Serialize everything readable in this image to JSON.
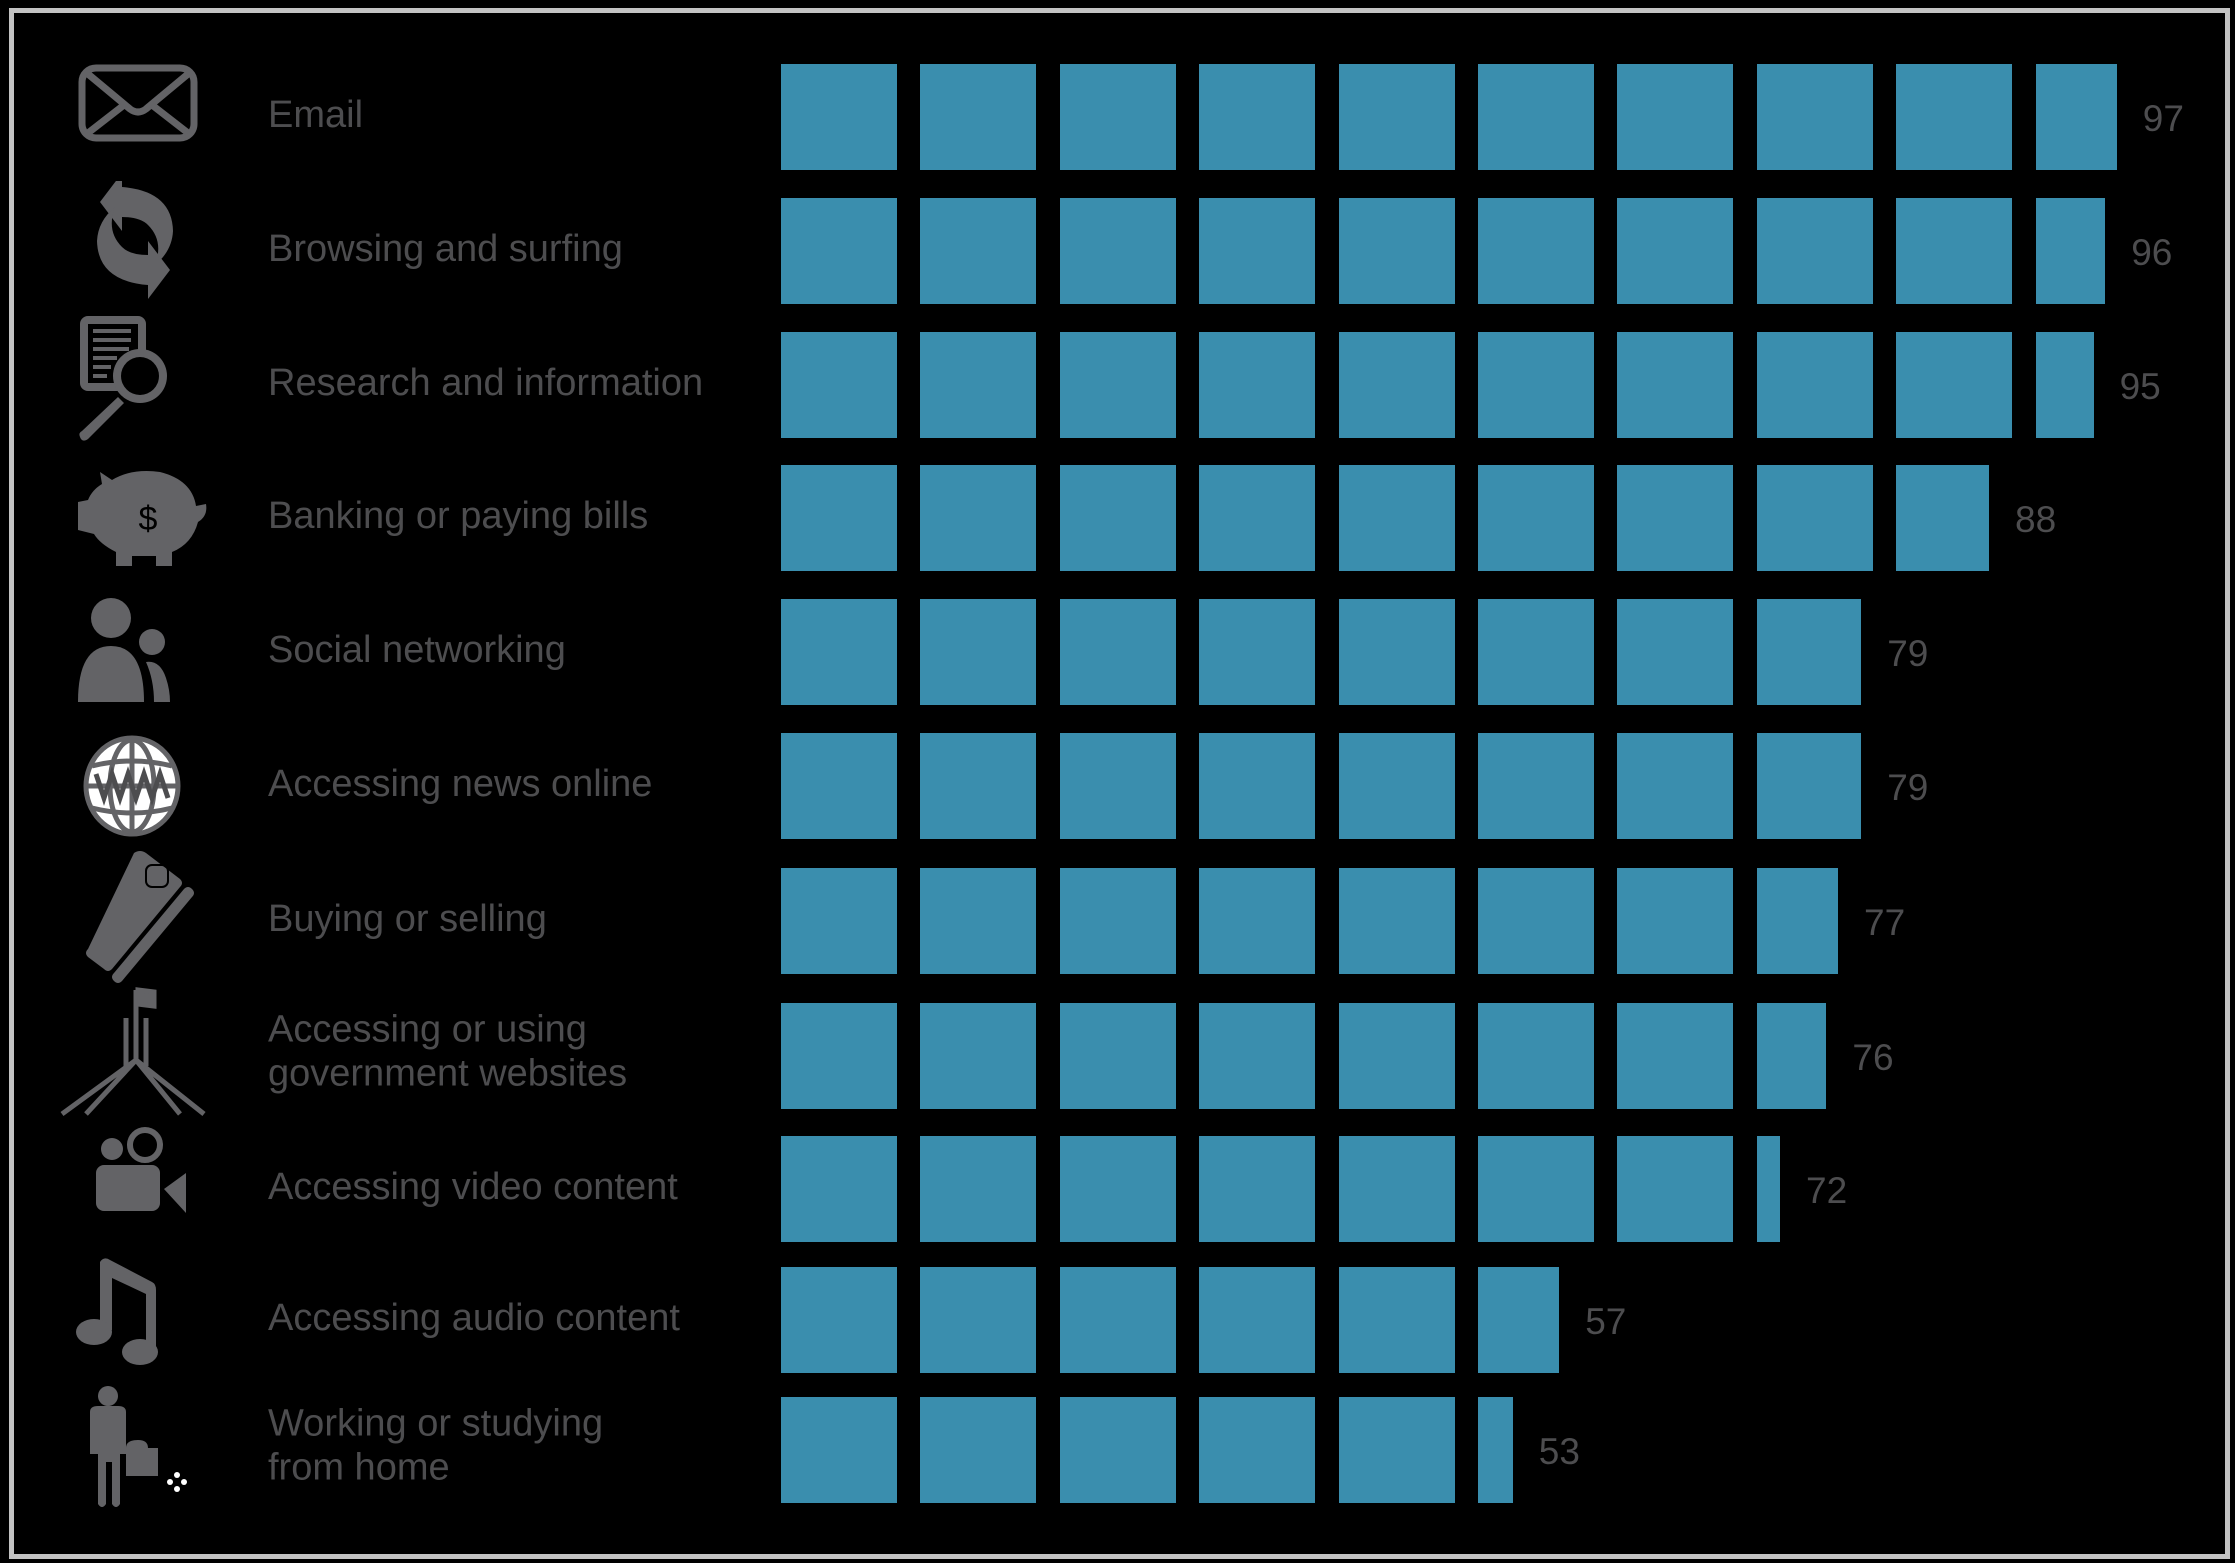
{
  "chart_data": {
    "type": "bar",
    "orientation": "horizontal",
    "style": "pictogram blocks (each block = 10 units)",
    "title": "",
    "xlabel": "",
    "ylabel": "",
    "xlim": [
      0,
      100
    ],
    "grid": false,
    "legend": null,
    "categories": [
      "Email",
      "Browsing and surfing",
      "Research and information",
      "Banking or paying bills",
      "Social networking",
      "Accessing news online",
      "Buying or selling",
      "Accessing or using government websites",
      "Accessing video content",
      "Accessing audio content",
      "Working or studying from home"
    ],
    "values": [
      97,
      96,
      95,
      88,
      79,
      79,
      77,
      76,
      72,
      57,
      53
    ]
  },
  "colors": {
    "background": "#000000",
    "bar": "#3a8eae",
    "text": "#4d4d4f",
    "icon": "#636366",
    "frame": "#c3c3c3"
  },
  "rows": [
    {
      "icon": "envelope-icon",
      "label_lines": [
        "Email"
      ],
      "value": 97,
      "value_label": "97"
    },
    {
      "icon": "refresh-arrows-icon",
      "label_lines": [
        "Browsing and surfing"
      ],
      "value": 96,
      "value_label": "96"
    },
    {
      "icon": "document-search-icon",
      "label_lines": [
        "Research and information"
      ],
      "value": 95,
      "value_label": "95"
    },
    {
      "icon": "piggy-bank-icon",
      "label_lines": [
        "Banking or paying bills"
      ],
      "value": 88,
      "value_label": "88"
    },
    {
      "icon": "people-icon",
      "label_lines": [
        "Social networking"
      ],
      "value": 79,
      "value_label": "79"
    },
    {
      "icon": "globe-www-icon",
      "label_lines": [
        "Accessing news online"
      ],
      "value": 79,
      "value_label": "79"
    },
    {
      "icon": "credit-card-icon",
      "label_lines": [
        "Buying or selling"
      ],
      "value": 77,
      "value_label": "77"
    },
    {
      "icon": "parliament-house-icon",
      "label_lines": [
        "Accessing or using",
        "government websites"
      ],
      "value": 76,
      "value_label": "76"
    },
    {
      "icon": "video-camera-icon",
      "label_lines": [
        "Accessing video content"
      ],
      "value": 72,
      "value_label": "72"
    },
    {
      "icon": "music-note-icon",
      "label_lines": [
        "Accessing audio content"
      ],
      "value": 57,
      "value_label": "57"
    },
    {
      "icon": "worker-briefcase-icon",
      "label_lines": [
        "Working or studying",
        "from home"
      ],
      "value": 53,
      "value_label": "53"
    }
  ]
}
